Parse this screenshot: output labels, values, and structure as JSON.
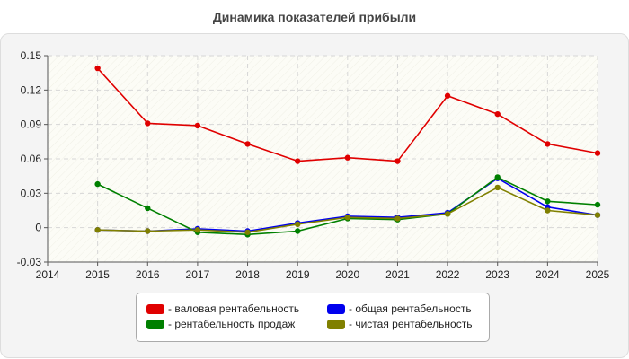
{
  "chart_data": {
    "type": "line",
    "title": "Динамика показателей прибыли",
    "xlabel": "",
    "ylabel": "",
    "x": [
      2015,
      2016,
      2017,
      2018,
      2019,
      2020,
      2021,
      2022,
      2023,
      2024,
      2025
    ],
    "x_ticks": [
      "2014",
      "2015",
      "2016",
      "2017",
      "2018",
      "2019",
      "2020",
      "2021",
      "2022",
      "2023",
      "2024",
      "2025"
    ],
    "xlim": [
      2014,
      2025
    ],
    "y_ticks": [
      "0.15",
      "0.12",
      "0.09",
      "0.06",
      "0.03",
      "0",
      "-0.03"
    ],
    "ylim": [
      -0.03,
      0.15
    ],
    "grid": true,
    "legend_position": "bottom",
    "series": [
      {
        "name": "- валовая рентабельность",
        "color": "#e00000",
        "values": [
          0.139,
          0.091,
          0.089,
          0.073,
          0.058,
          0.061,
          0.058,
          0.115,
          0.099,
          0.073,
          0.065
        ]
      },
      {
        "name": "- общая рентабельность",
        "color": "#0000ee",
        "values": [
          -0.002,
          -0.003,
          -0.001,
          -0.003,
          0.004,
          0.01,
          0.009,
          0.013,
          0.043,
          0.018,
          0.011
        ]
      },
      {
        "name": "- рентабельность продаж",
        "color": "#008000",
        "values": [
          0.038,
          0.017,
          -0.004,
          -0.006,
          -0.003,
          0.008,
          0.007,
          0.012,
          0.044,
          0.023,
          0.02
        ]
      },
      {
        "name": "- чистая рентабельность",
        "color": "#808000",
        "values": [
          -0.002,
          -0.003,
          -0.002,
          -0.004,
          0.003,
          0.009,
          0.008,
          0.012,
          0.035,
          0.015,
          0.011
        ]
      }
    ]
  }
}
